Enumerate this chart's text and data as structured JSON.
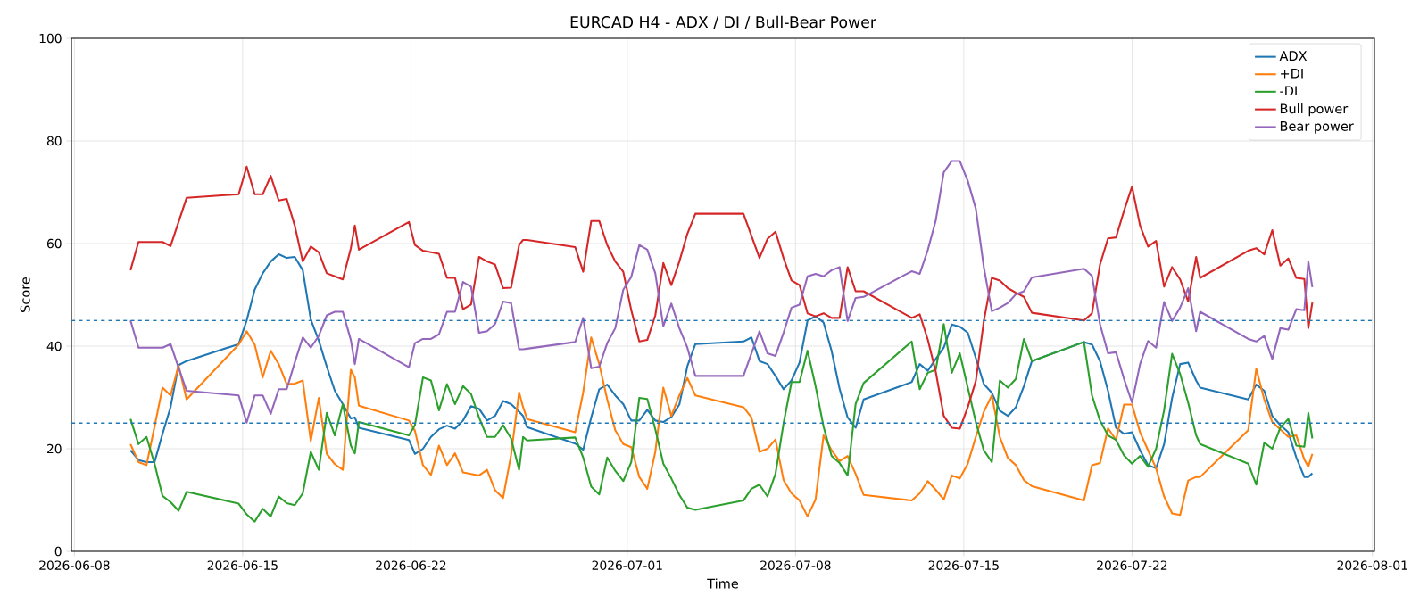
{
  "chart_data": {
    "type": "line",
    "title": "EURCAD H4 - ADX / DI / Bull-Bear Power",
    "xlabel": "Time",
    "ylabel": "Score",
    "x": [
      "2026-06-10T08:00",
      "2026-06-10T16:00",
      "2026-06-11T00:00",
      "2026-06-11T08:00",
      "2026-06-11T16:00",
      "2026-06-12T00:00",
      "2026-06-12T08:00",
      "2026-06-12T16:00",
      "2026-06-14T20:00",
      "2026-06-15T04:00",
      "2026-06-15T12:00",
      "2026-06-15T20:00",
      "2026-06-16T04:00",
      "2026-06-16T12:00",
      "2026-06-16T20:00",
      "2026-06-17T04:00",
      "2026-06-17T12:00",
      "2026-06-17T20:00",
      "2026-06-18T04:00",
      "2026-06-18T12:00",
      "2026-06-18T20:00",
      "2026-06-19T04:00",
      "2026-06-19T12:00",
      "2026-06-19T16:00",
      "2026-06-19T20:00",
      "2026-06-21T22:00",
      "2026-06-22T04:00",
      "2026-06-22T12:00",
      "2026-06-22T20:00",
      "2026-06-23T04:00",
      "2026-06-23T12:00",
      "2026-06-23T20:00",
      "2026-06-24T04:00",
      "2026-06-24T12:00",
      "2026-06-24T20:00",
      "2026-06-25T04:00",
      "2026-06-25T12:00",
      "2026-06-25T20:00",
      "2026-06-26T04:00",
      "2026-06-26T12:00",
      "2026-06-26T16:00",
      "2026-06-26T20:00",
      "2026-06-28T20:00",
      "2026-06-29T04:00",
      "2026-06-29T12:00",
      "2026-06-29T20:00",
      "2026-06-30T04:00",
      "2026-06-30T12:00",
      "2026-06-30T20:00",
      "2026-07-01T04:00",
      "2026-07-01T12:00",
      "2026-07-01T20:00",
      "2026-07-02T04:00",
      "2026-07-02T12:00",
      "2026-07-02T20:00",
      "2026-07-03T04:00",
      "2026-07-03T12:00",
      "2026-07-03T20:00",
      "2026-07-05T20:00",
      "2026-07-06T04:00",
      "2026-07-06T12:00",
      "2026-07-06T20:00",
      "2026-07-07T04:00",
      "2026-07-07T12:00",
      "2026-07-07T20:00",
      "2026-07-08T04:00",
      "2026-07-08T12:00",
      "2026-07-08T20:00",
      "2026-07-09T04:00",
      "2026-07-09T12:00",
      "2026-07-09T20:00",
      "2026-07-10T04:00",
      "2026-07-10T12:00",
      "2026-07-10T20:00",
      "2026-07-12T20:00",
      "2026-07-13T04:00",
      "2026-07-13T12:00",
      "2026-07-13T20:00",
      "2026-07-14T04:00",
      "2026-07-14T12:00",
      "2026-07-14T20:00",
      "2026-07-15T04:00",
      "2026-07-15T12:00",
      "2026-07-15T20:00",
      "2026-07-16T04:00",
      "2026-07-16T12:00",
      "2026-07-16T20:00",
      "2026-07-17T04:00",
      "2026-07-17T12:00",
      "2026-07-17T20:00",
      "2026-07-20T00:00",
      "2026-07-20T08:00",
      "2026-07-20T16:00",
      "2026-07-21T00:00",
      "2026-07-21T08:00",
      "2026-07-21T16:00",
      "2026-07-22T00:00",
      "2026-07-22T08:00",
      "2026-07-22T16:00",
      "2026-07-23T00:00",
      "2026-07-23T08:00",
      "2026-07-23T16:00",
      "2026-07-24T00:00",
      "2026-07-24T08:00",
      "2026-07-24T16:00",
      "2026-07-24T20:00",
      "2026-07-26T20:00",
      "2026-07-27T04:00",
      "2026-07-27T12:00",
      "2026-07-27T20:00",
      "2026-07-28T04:00",
      "2026-07-28T12:00",
      "2026-07-28T20:00",
      "2026-07-29T04:00",
      "2026-07-29T08:00",
      "2026-07-29T12:00"
    ],
    "series": [
      {
        "name": "ADX",
        "color": "#1f77b4",
        "values": [
          19.7,
          17.8,
          17.4,
          17.4,
          22.9,
          28.1,
          36.3,
          37.1,
          40.4,
          45.0,
          51.0,
          54.2,
          56.5,
          57.9,
          57.2,
          57.4,
          54.8,
          45.2,
          41.1,
          36.0,
          31.3,
          28.7,
          25.9,
          26.1,
          24.1,
          21.7,
          19.0,
          20.0,
          22.3,
          23.8,
          24.5,
          23.9,
          25.5,
          28.3,
          27.8,
          25.5,
          26.4,
          29.3,
          28.7,
          27.2,
          26.4,
          24.2,
          21.0,
          19.8,
          26.1,
          31.6,
          32.5,
          30.4,
          28.7,
          25.5,
          25.5,
          27.6,
          25.5,
          25.2,
          26.2,
          28.6,
          36.1,
          40.4,
          40.9,
          41.7,
          37.1,
          36.5,
          34.2,
          31.6,
          33.3,
          36.8,
          45.0,
          45.8,
          44.6,
          39.1,
          31.7,
          26.1,
          24.1,
          29.6,
          33.0,
          36.5,
          35.2,
          37.5,
          39.7,
          44.2,
          43.8,
          42.6,
          37.7,
          32.6,
          30.9,
          27.4,
          26.4,
          28.1,
          32.2,
          37.1,
          40.8,
          40.3,
          37.1,
          31.3,
          24.1,
          22.9,
          23.2,
          19.7,
          16.8,
          16.2,
          20.9,
          29.9,
          36.5,
          36.8,
          33.3,
          31.9,
          29.6,
          32.5,
          31.3,
          26.4,
          24.6,
          23.2,
          18.3,
          14.5,
          14.5,
          15.2
        ]
      },
      {
        "name": "+DI",
        "color": "#ff7f0e",
        "values": [
          20.9,
          17.4,
          16.8,
          24.3,
          31.9,
          30.4,
          36.2,
          29.6,
          40.3,
          42.9,
          40.3,
          33.9,
          39.1,
          36.5,
          32.6,
          32.7,
          33.3,
          21.5,
          29.9,
          19.0,
          17.0,
          15.9,
          35.4,
          33.9,
          28.4,
          25.5,
          23.5,
          16.8,
          14.9,
          20.6,
          16.8,
          19.1,
          15.4,
          15.1,
          14.8,
          15.9,
          11.9,
          10.4,
          18.8,
          31.0,
          28.1,
          25.8,
          23.2,
          31.0,
          41.7,
          36.5,
          29.6,
          23.6,
          20.9,
          20.3,
          14.5,
          12.2,
          19.4,
          31.9,
          26.4,
          30.4,
          33.8,
          30.4,
          28.1,
          26.1,
          19.4,
          20.0,
          21.8,
          13.9,
          11.3,
          9.9,
          6.8,
          10.1,
          22.6,
          19.7,
          17.6,
          18.6,
          15.1,
          11.0,
          9.9,
          11.3,
          13.7,
          12.0,
          10.1,
          14.8,
          14.2,
          17.1,
          22.3,
          27.2,
          30.4,
          22.3,
          18.2,
          16.8,
          13.9,
          12.7,
          9.9,
          16.8,
          17.2,
          24.0,
          21.7,
          28.6,
          28.6,
          23.2,
          19.7,
          16.2,
          10.7,
          7.4,
          7.1,
          13.8,
          14.5,
          14.5,
          23.6,
          35.6,
          29.6,
          25.2,
          23.8,
          22.3,
          22.6,
          17.9,
          16.5,
          19.0
        ]
      },
      {
        "name": "-DI",
        "color": "#2ca02c",
        "values": [
          25.8,
          20.9,
          22.3,
          17.1,
          10.8,
          9.6,
          7.9,
          11.6,
          9.3,
          7.2,
          5.8,
          8.3,
          6.8,
          10.7,
          9.4,
          9.0,
          11.3,
          19.4,
          15.9,
          27.0,
          22.6,
          28.7,
          20.6,
          19.1,
          25.2,
          22.6,
          24.6,
          33.9,
          33.3,
          27.5,
          32.6,
          28.7,
          32.2,
          30.7,
          26.1,
          22.3,
          22.3,
          24.6,
          22.0,
          15.9,
          22.3,
          21.6,
          22.2,
          18.3,
          12.6,
          11.1,
          18.3,
          15.7,
          13.7,
          17.4,
          29.9,
          29.7,
          23.8,
          17.1,
          14.2,
          11.0,
          8.5,
          8.1,
          9.9,
          12.2,
          13.0,
          10.7,
          15.1,
          24.9,
          33.0,
          33.0,
          39.1,
          32.2,
          24.3,
          18.6,
          17.2,
          14.8,
          28.7,
          32.8,
          40.9,
          31.6,
          34.8,
          35.4,
          44.3,
          34.8,
          38.6,
          31.9,
          25.2,
          19.7,
          17.4,
          33.3,
          31.9,
          33.6,
          41.4,
          37.1,
          40.8,
          30.4,
          25.5,
          22.6,
          21.7,
          18.7,
          17.1,
          18.6,
          16.5,
          20.0,
          27.5,
          38.5,
          34.6,
          29.0,
          22.6,
          20.9,
          17.1,
          13.0,
          21.2,
          20.0,
          24.1,
          25.8,
          20.6,
          20.4,
          27.0,
          22.0
        ]
      },
      {
        "name": "Bull power",
        "color": "#d62728",
        "values": [
          54.8,
          60.3,
          60.3,
          60.3,
          60.3,
          59.5,
          64.2,
          68.9,
          69.6,
          75.0,
          69.6,
          69.6,
          73.2,
          68.4,
          68.7,
          63.5,
          56.5,
          59.4,
          58.3,
          54.2,
          53.6,
          53.0,
          59.1,
          63.5,
          58.8,
          64.2,
          59.7,
          58.6,
          58.3,
          58.0,
          53.3,
          53.3,
          47.2,
          48.1,
          57.4,
          56.5,
          55.9,
          51.3,
          51.4,
          59.7,
          60.7,
          60.7,
          59.3,
          54.5,
          64.4,
          64.4,
          59.7,
          56.5,
          54.5,
          47.0,
          40.9,
          41.2,
          46.0,
          56.2,
          51.9,
          56.5,
          61.9,
          65.8,
          65.8,
          61.5,
          57.2,
          60.9,
          62.3,
          57.2,
          52.8,
          51.9,
          46.4,
          45.8,
          46.4,
          45.5,
          45.5,
          55.4,
          50.7,
          50.7,
          45.5,
          46.2,
          41.3,
          35.0,
          26.4,
          24.1,
          23.9,
          28.1,
          33.2,
          44.9,
          53.3,
          52.8,
          51.3,
          50.4,
          49.6,
          46.5,
          45.0,
          46.4,
          55.9,
          61.0,
          61.2,
          66.4,
          71.1,
          63.5,
          59.4,
          60.5,
          51.6,
          55.4,
          53.0,
          48.7,
          57.4,
          53.3,
          58.6,
          59.1,
          57.9,
          62.6,
          55.7,
          57.1,
          53.3,
          53.1,
          43.5,
          48.5
        ]
      },
      {
        "name": "Bear power",
        "color": "#9467bd",
        "values": [
          45.0,
          39.7,
          39.7,
          39.7,
          39.7,
          40.4,
          35.8,
          31.3,
          30.4,
          25.1,
          30.4,
          30.4,
          26.8,
          31.6,
          31.6,
          36.8,
          41.7,
          39.7,
          42.0,
          46.0,
          46.7,
          46.7,
          41.2,
          36.5,
          41.4,
          35.9,
          40.6,
          41.4,
          41.4,
          42.3,
          46.7,
          46.7,
          52.5,
          51.6,
          42.6,
          42.9,
          44.3,
          48.7,
          48.4,
          39.4,
          39.4,
          39.5,
          40.8,
          45.5,
          35.7,
          36.0,
          40.6,
          43.5,
          51.0,
          53.5,
          59.7,
          58.8,
          54.2,
          43.9,
          48.3,
          43.5,
          39.7,
          34.2,
          34.2,
          38.6,
          42.9,
          38.6,
          38.1,
          42.6,
          47.5,
          48.1,
          53.6,
          54.1,
          53.6,
          54.8,
          55.4,
          44.9,
          49.4,
          49.6,
          54.6,
          54.1,
          58.7,
          64.5,
          73.9,
          76.1,
          76.1,
          72.2,
          66.8,
          55.4,
          46.8,
          47.5,
          48.4,
          50.1,
          50.7,
          53.4,
          55.1,
          53.7,
          44.3,
          38.6,
          38.8,
          33.6,
          29.0,
          36.5,
          41.0,
          39.7,
          48.6,
          44.9,
          47.5,
          51.3,
          42.9,
          46.7,
          41.4,
          40.9,
          42.0,
          37.5,
          43.5,
          43.2,
          47.2,
          47.0,
          56.5,
          51.5
        ]
      }
    ],
    "xlim": [
      "2026-06-07T21:00",
      "2026-08-01T02:00"
    ],
    "xticks": [
      "2026-06-08",
      "2026-06-15",
      "2026-06-22",
      "2026-07-01",
      "2026-07-08",
      "2026-07-15",
      "2026-07-22",
      "2026-08-01"
    ],
    "ylim": [
      0,
      100
    ],
    "yticks": [
      0,
      20,
      40,
      60,
      80,
      100
    ],
    "ref_lines": [
      {
        "axis": "y",
        "value": 45,
        "color": "#1f77b4",
        "line_style": "dashed"
      },
      {
        "axis": "y",
        "value": 25,
        "color": "#1f77b4",
        "line_style": "dashed"
      }
    ],
    "grid": true,
    "legend": "top right"
  }
}
